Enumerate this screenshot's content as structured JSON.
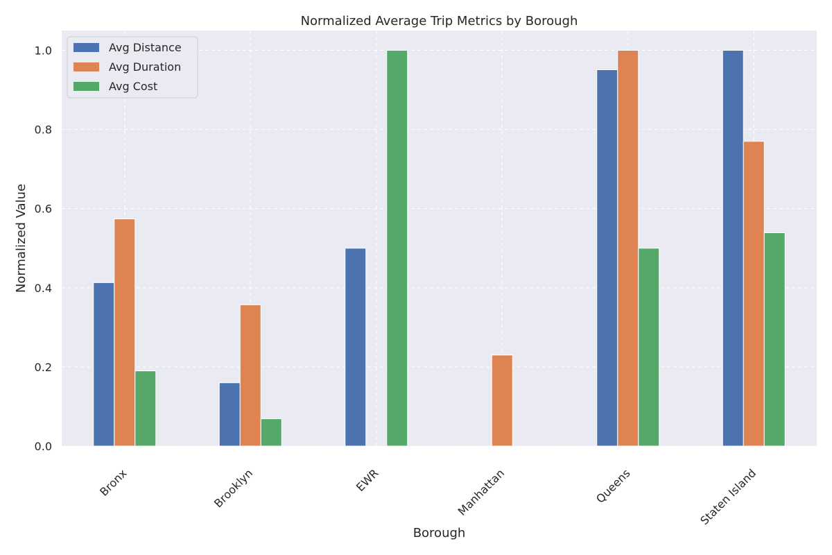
{
  "chart_data": {
    "type": "bar",
    "title": "Normalized Average Trip Metrics by Borough",
    "xlabel": "Borough",
    "ylabel": "Normalized Value",
    "categories": [
      "Bronx",
      "Brooklyn",
      "EWR",
      "Manhattan",
      "Queens",
      "Staten Island"
    ],
    "series": [
      {
        "name": "Avg Distance",
        "color": "#4c72b0",
        "values": [
          0.413,
          0.16,
          0.5,
          0.0,
          0.951,
          1.0
        ]
      },
      {
        "name": "Avg Duration",
        "color": "#dd8452",
        "values": [
          0.574,
          0.357,
          0.0,
          0.23,
          1.0,
          0.77
        ]
      },
      {
        "name": "Avg Cost",
        "color": "#55a868",
        "values": [
          0.19,
          0.069,
          1.0,
          0.0,
          0.5,
          0.539
        ]
      }
    ],
    "ylim": [
      0,
      1.05
    ],
    "yticks": [
      "0.0",
      "0.2",
      "0.4",
      "0.6",
      "0.8",
      "1.0"
    ],
    "ytick_values": [
      0.0,
      0.2,
      0.4,
      0.6,
      0.8,
      1.0
    ],
    "grid": true,
    "legend_position": "top-left",
    "background_color": "#eaeaf2"
  }
}
